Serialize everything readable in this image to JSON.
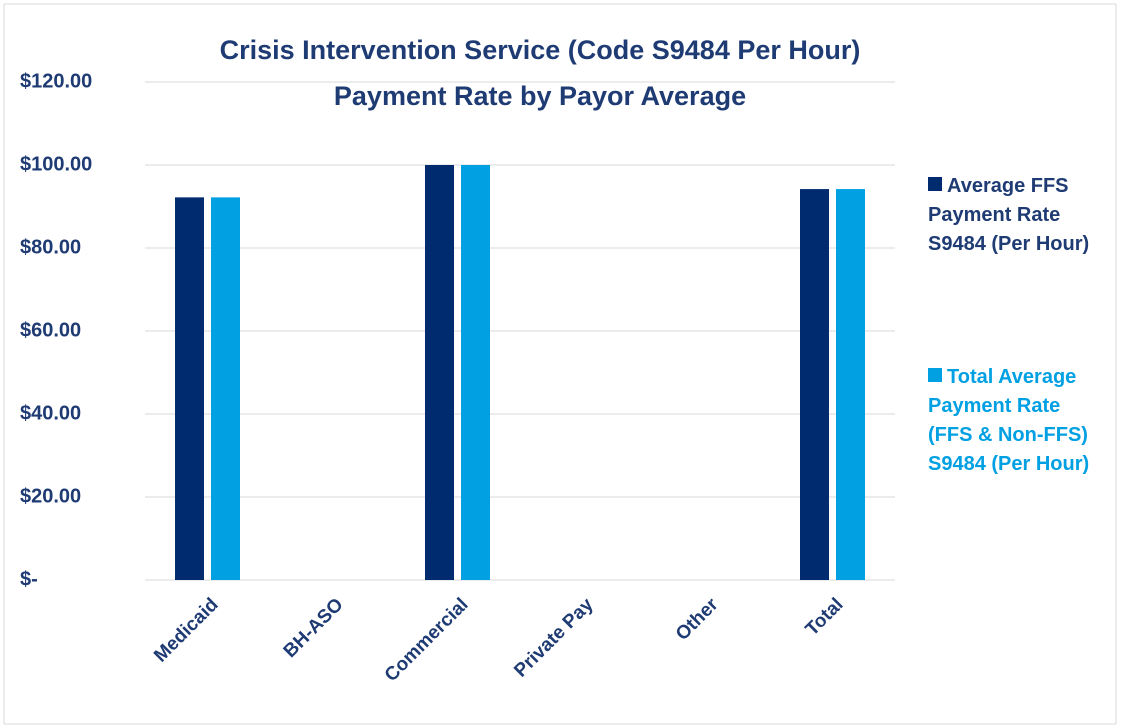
{
  "chart_data": {
    "type": "bar",
    "title": "Crisis Intervention Service (Code S9484 Per Hour)",
    "subtitle": "Payment Rate by Payor Average",
    "categories": [
      "Medicaid",
      "BH-ASO",
      "Commercial",
      "Private Pay",
      "Other",
      "Total"
    ],
    "series": [
      {
        "name": "Average FFS Payment Rate S9484 (Per Hour)",
        "color": "#002b6f",
        "values": [
          92.2,
          0,
          100,
          0,
          0,
          94.2
        ]
      },
      {
        "name": "Total Average Payment Rate (FFS & Non-FFS) S9484 (Per Hour)",
        "color": "#00a0e3",
        "values": [
          92.2,
          0,
          100,
          0,
          0,
          94.2
        ]
      }
    ],
    "ylim": [
      0,
      120
    ],
    "yticks": [
      {
        "value": 0,
        "label": "$-"
      },
      {
        "value": 20,
        "label": "$20.00"
      },
      {
        "value": 40,
        "label": "$40.00"
      },
      {
        "value": 60,
        "label": "$60.00"
      },
      {
        "value": 80,
        "label": "$80.00"
      },
      {
        "value": 100,
        "label": "$100.00"
      },
      {
        "value": 120,
        "label": "$120.00"
      }
    ],
    "grid": true,
    "legend": "right"
  }
}
